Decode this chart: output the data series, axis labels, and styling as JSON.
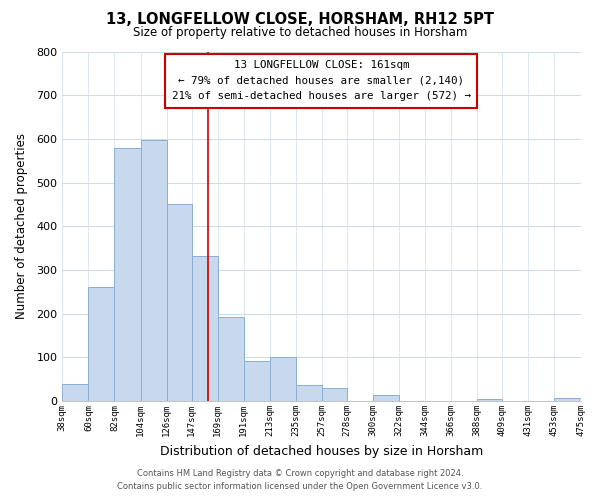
{
  "title": "13, LONGFELLOW CLOSE, HORSHAM, RH12 5PT",
  "subtitle": "Size of property relative to detached houses in Horsham",
  "xlabel": "Distribution of detached houses by size in Horsham",
  "ylabel": "Number of detached properties",
  "bar_color": "#c8d9ee",
  "bar_edge_color": "#8aafd4",
  "reference_line_x": 161,
  "reference_line_color": "#cc0000",
  "bins_left": [
    38,
    60,
    82,
    104,
    126,
    147,
    169,
    191,
    213,
    235,
    257,
    278,
    300,
    322,
    344,
    366,
    388,
    409,
    431,
    453
  ],
  "bins_right": [
    60,
    82,
    104,
    126,
    147,
    169,
    191,
    213,
    235,
    257,
    278,
    300,
    322,
    344,
    366,
    388,
    409,
    431,
    453,
    475
  ],
  "heights": [
    40,
    262,
    580,
    598,
    450,
    333,
    193,
    91,
    100,
    37,
    30,
    0,
    13,
    0,
    0,
    0,
    5,
    0,
    0,
    8
  ],
  "tick_labels": [
    "38sqm",
    "60sqm",
    "82sqm",
    "104sqm",
    "126sqm",
    "147sqm",
    "169sqm",
    "191sqm",
    "213sqm",
    "235sqm",
    "257sqm",
    "278sqm",
    "300sqm",
    "322sqm",
    "344sqm",
    "366sqm",
    "388sqm",
    "409sqm",
    "431sqm",
    "453sqm",
    "475sqm"
  ],
  "ylim": [
    0,
    800
  ],
  "yticks": [
    0,
    100,
    200,
    300,
    400,
    500,
    600,
    700,
    800
  ],
  "annotation_line1": "13 LONGFELLOW CLOSE: 161sqm",
  "annotation_line2": "← 79% of detached houses are smaller (2,140)",
  "annotation_line3": "21% of semi-detached houses are larger (572) →",
  "footer_line1": "Contains HM Land Registry data © Crown copyright and database right 2024.",
  "footer_line2": "Contains public sector information licensed under the Open Government Licence v3.0.",
  "background_color": "#ffffff",
  "plot_bg_color": "#ffffff",
  "grid_color": "#d0dce8"
}
